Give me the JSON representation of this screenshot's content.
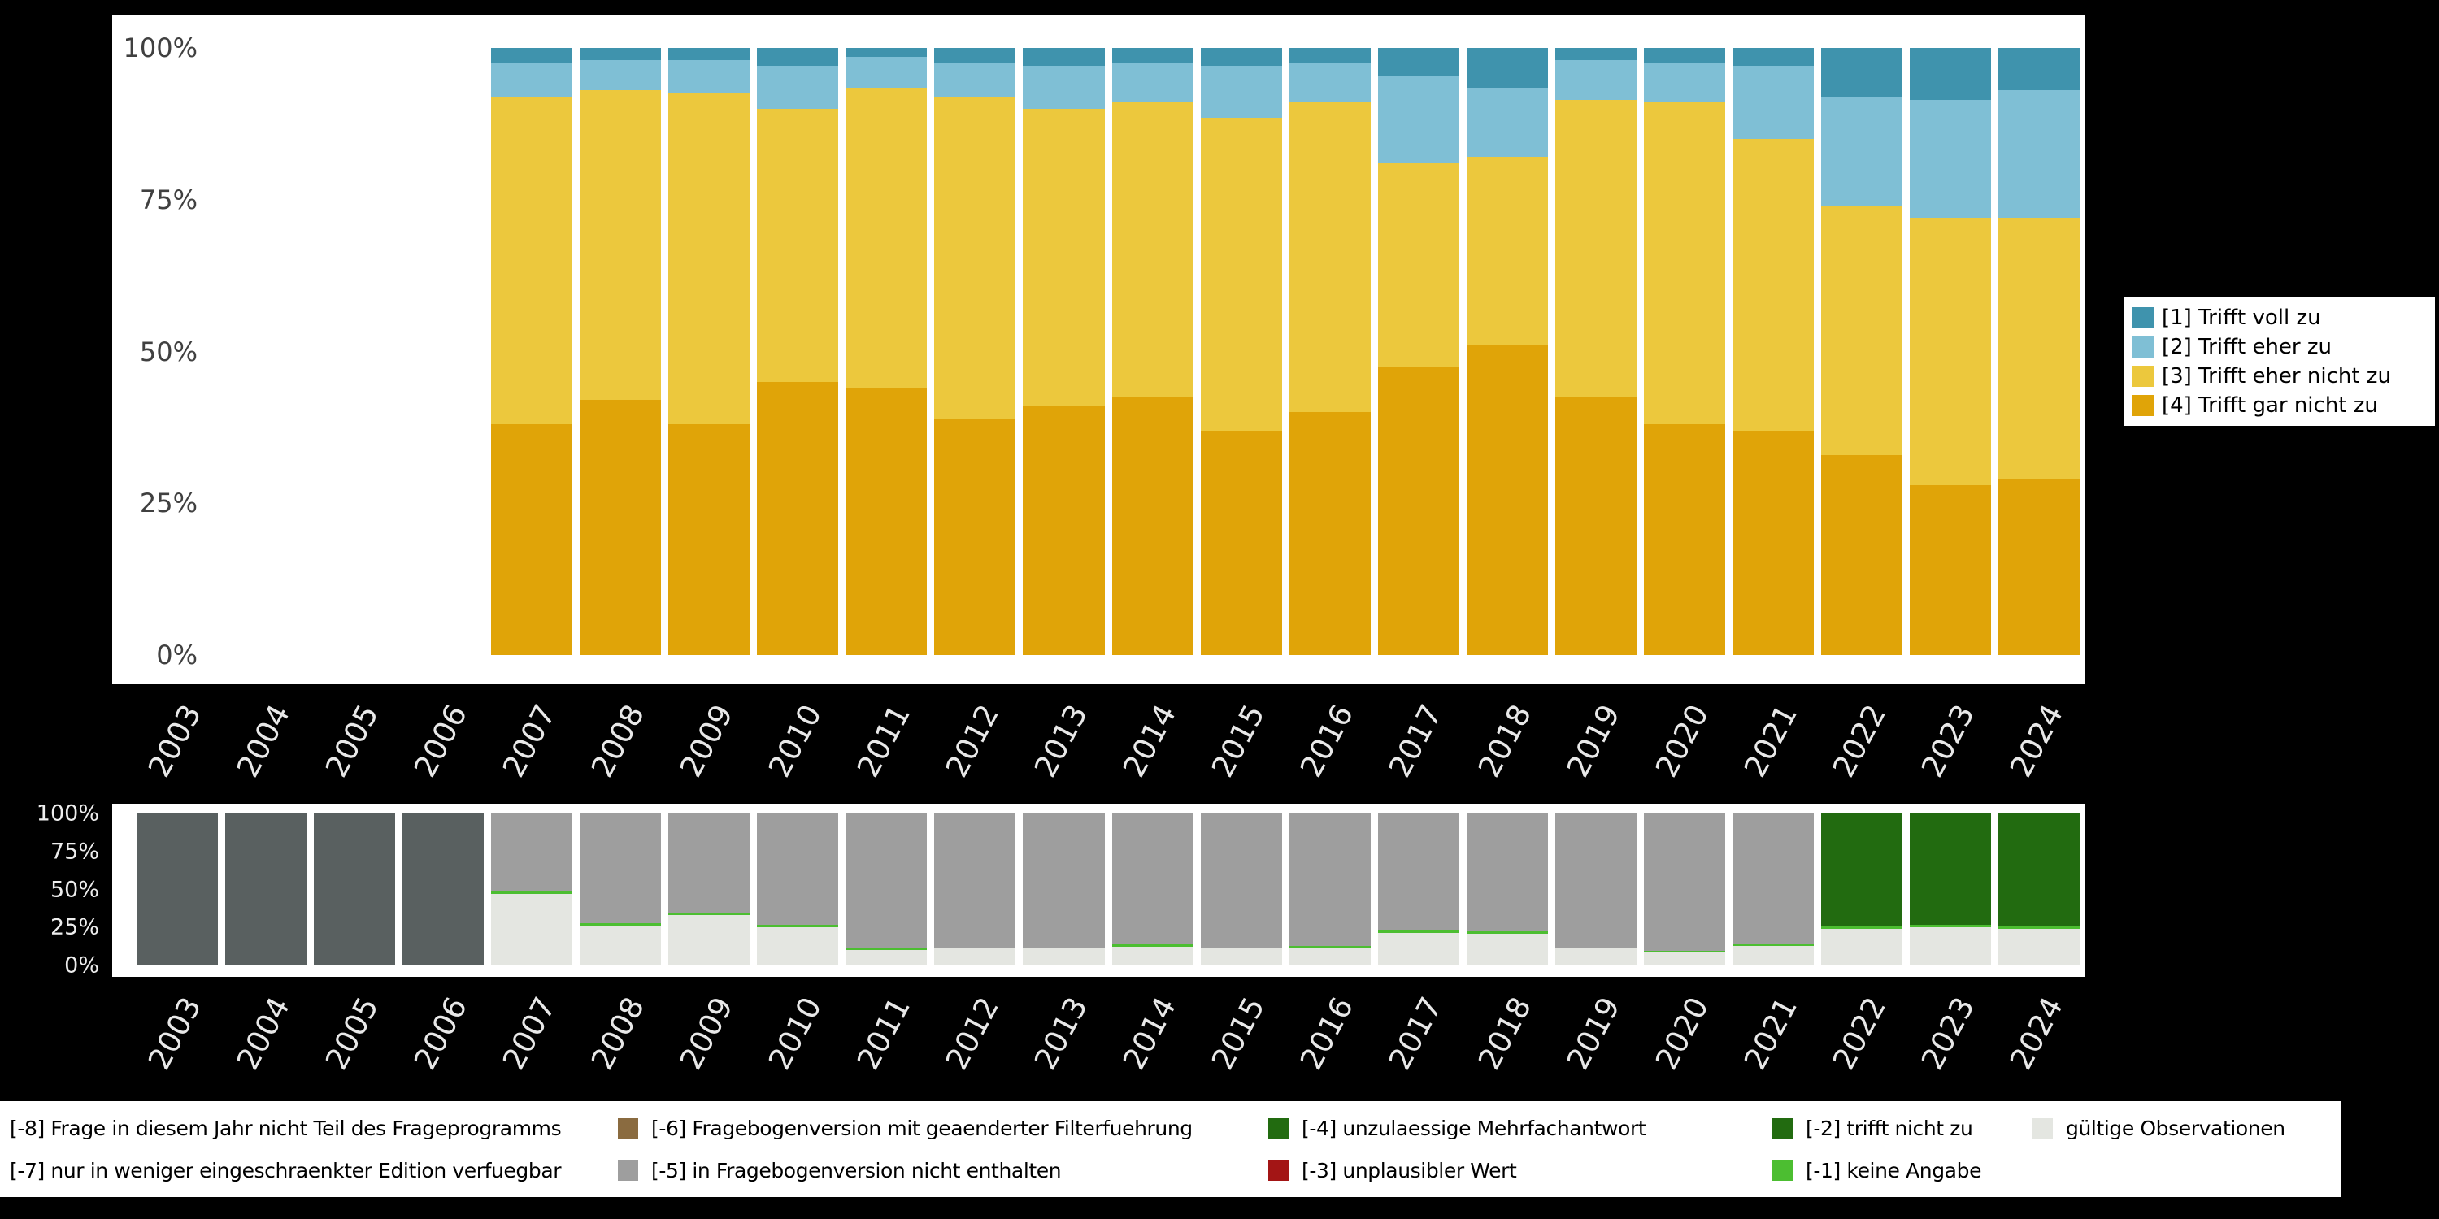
{
  "colors": {
    "background": "#000000",
    "panel": "#ffffff",
    "axis_text_dark": "#404040",
    "axis_text_light": "#e8e8e8"
  },
  "chart_data": [
    {
      "id": "responses-by-year",
      "type": "bar",
      "stacked": true,
      "unit": "percent",
      "title": "",
      "xlabel": "",
      "ylabel": "",
      "ylim": [
        0,
        100
      ],
      "grid": false,
      "yticks": [
        "100%",
        "75%",
        "50%",
        "25%",
        "0%"
      ],
      "categories": [
        "2003",
        "2004",
        "2005",
        "2006",
        "2007",
        "2008",
        "2009",
        "2010",
        "2011",
        "2012",
        "2013",
        "2014",
        "2015",
        "2016",
        "2017",
        "2018",
        "2019",
        "2020",
        "2021",
        "2022",
        "2023",
        "2024"
      ],
      "series": [
        {
          "name": "[4] Trifft gar nicht zu",
          "color": "#e0a408",
          "values": [
            0,
            0,
            0,
            0,
            38,
            42,
            38,
            45,
            44,
            39,
            41,
            42.5,
            37,
            40,
            47.5,
            51,
            42.5,
            38,
            37,
            33,
            28,
            29
          ]
        },
        {
          "name": "[3] Trifft eher nicht zu",
          "color": "#ecc83d",
          "values": [
            0,
            0,
            0,
            0,
            54,
            51,
            54.5,
            45,
            49.5,
            53,
            49,
            48.5,
            51.5,
            51,
            33.5,
            31,
            49,
            53,
            48,
            41,
            44,
            43
          ]
        },
        {
          "name": "[2] Trifft eher zu",
          "color": "#7fbfd5",
          "values": [
            0,
            0,
            0,
            0,
            5.5,
            5,
            5.5,
            7,
            5,
            5.5,
            7,
            6.5,
            8.5,
            6.5,
            14.5,
            11.5,
            6.5,
            6.5,
            12,
            18,
            19.5,
            21
          ]
        },
        {
          "name": "[1] Trifft voll zu",
          "color": "#3f93ad",
          "values": [
            0,
            0,
            0,
            0,
            2.5,
            2,
            2,
            3,
            1.5,
            2.5,
            3,
            2.5,
            3,
            2.5,
            4.5,
            6.5,
            2,
            2.5,
            3,
            8,
            8.5,
            7
          ]
        }
      ],
      "legend": {
        "position": "right",
        "items": [
          {
            "label": "[1] Trifft voll zu",
            "color": "#3f93ad"
          },
          {
            "label": "[2] Trifft eher zu",
            "color": "#7fbfd5"
          },
          {
            "label": "[3] Trifft eher nicht zu",
            "color": "#ecc83d"
          },
          {
            "label": "[4] Trifft gar nicht zu",
            "color": "#e0a408"
          }
        ]
      }
    },
    {
      "id": "observations-and-missings-by-year",
      "type": "bar",
      "stacked": true,
      "unit": "percent",
      "title": "",
      "xlabel": "",
      "ylabel": "",
      "ylim": [
        0,
        100
      ],
      "grid": false,
      "yticks": [
        "100%",
        "75%",
        "50%",
        "25%",
        "0%"
      ],
      "categories": [
        "2003",
        "2004",
        "2005",
        "2006",
        "2007",
        "2008",
        "2009",
        "2010",
        "2011",
        "2012",
        "2013",
        "2014",
        "2015",
        "2016",
        "2017",
        "2018",
        "2019",
        "2020",
        "2021",
        "2022",
        "2023",
        "2024"
      ],
      "series": [
        {
          "name": "gültige Observationen",
          "color": "#e4e6e1",
          "values": [
            0,
            0,
            0,
            0,
            47,
            26,
            33,
            25,
            10,
            11,
            11,
            12.5,
            11,
            12,
            21.5,
            21,
            11,
            9,
            13,
            24,
            25,
            24
          ]
        },
        {
          "name": "[-1] keine Angabe",
          "color": "#4cbe31",
          "values": [
            0,
            0,
            0,
            0,
            1.5,
            2,
            1.5,
            1.5,
            1,
            1,
            1,
            1.5,
            1,
            1,
            2,
            1.5,
            1,
            0.8,
            1,
            1.5,
            1.5,
            2
          ]
        },
        {
          "name": "[-5] in Fragebogenversion nicht enthalten",
          "color": "#9e9e9e",
          "values": [
            0,
            0,
            0,
            0,
            51.5,
            72,
            65.5,
            73.5,
            89,
            88,
            88,
            86,
            88,
            87,
            76.5,
            77.5,
            88,
            90.2,
            86,
            0,
            0,
            0
          ]
        },
        {
          "name": "[-2] trifft nicht zu",
          "color": "#226b10",
          "values": [
            0,
            0,
            0,
            0,
            0,
            0,
            0,
            0,
            0,
            0,
            0,
            0,
            0,
            0,
            0,
            0,
            0,
            0,
            0,
            74.5,
            73.5,
            74
          ]
        },
        {
          "name": "[-8] Frage in diesem Jahr nicht Teil des Frageprogramms",
          "color": "#596060",
          "values": [
            100,
            100,
            100,
            100,
            0,
            0,
            0,
            0,
            0,
            0,
            0,
            0,
            0,
            0,
            0,
            0,
            0,
            0,
            0,
            0,
            0,
            0
          ]
        }
      ],
      "legend": {
        "position": "bottom",
        "rows": [
          [
            {
              "label": "[-8] Frage in diesem Jahr nicht Teil des Frageprogramms",
              "color": "#5e4a28"
            },
            {
              "label": "[-6] Fragebogenversion mit geaenderter Filterfuehrung",
              "color": "#8a6b40"
            },
            {
              "label": "[-4] unzulaessige Mehrfachantwort",
              "color": "#226b10"
            },
            {
              "label": "[-2] trifft nicht zu",
              "color": "#226b10"
            },
            {
              "label": "gültige Observationen",
              "color": "#e4e6e1"
            }
          ],
          [
            {
              "label": "[-7] nur in weniger eingeschraenkter Edition verfuegbar",
              "color": "#9e9e9e"
            },
            {
              "label": "[-5] in Fragebogenversion nicht enthalten",
              "color": "#9e9e9e"
            },
            {
              "label": "[-3] unplausibler Wert",
              "color": "#a31515"
            },
            {
              "label": "[-1] keine Angabe",
              "color": "#4cbe31"
            }
          ]
        ]
      }
    }
  ]
}
